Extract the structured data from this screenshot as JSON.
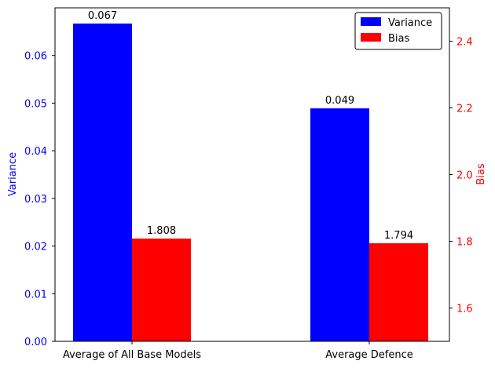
{
  "chart_data": {
    "type": "bar",
    "title": "",
    "xlabel": "",
    "categories": [
      "Average of All Base Models",
      "Average Defence"
    ],
    "series": [
      {
        "name": "Variance",
        "axis": "left",
        "color": "#0000ff",
        "values": [
          0.0667,
          0.0489
        ],
        "value_labels": [
          "0.067",
          "0.049"
        ]
      },
      {
        "name": "Bias",
        "axis": "right",
        "color": "#ff0000",
        "values": [
          1.808,
          1.794
        ],
        "value_labels": [
          "1.808",
          "1.794"
        ]
      }
    ],
    "left_axis": {
      "label": "Variance",
      "color": "#0000ff",
      "ylim": [
        0,
        0.07
      ],
      "ticks": [
        0,
        0.01,
        0.02,
        0.03,
        0.04,
        0.05,
        0.06
      ],
      "tick_labels": [
        "0.00",
        "0.01",
        "0.02",
        "0.03",
        "0.04",
        "0.05",
        "0.06"
      ]
    },
    "right_axis": {
      "label": "Bias",
      "color": "#ff0000",
      "ylim": [
        1.5,
        2.5
      ],
      "ticks": [
        1.6,
        1.8,
        2.0,
        2.2,
        2.4
      ],
      "tick_labels": [
        "1.6",
        "1.8",
        "2.0",
        "2.2",
        "2.4"
      ]
    },
    "legend": {
      "position": "top-right",
      "entries": [
        "Variance",
        "Bias"
      ]
    },
    "grid": false
  }
}
